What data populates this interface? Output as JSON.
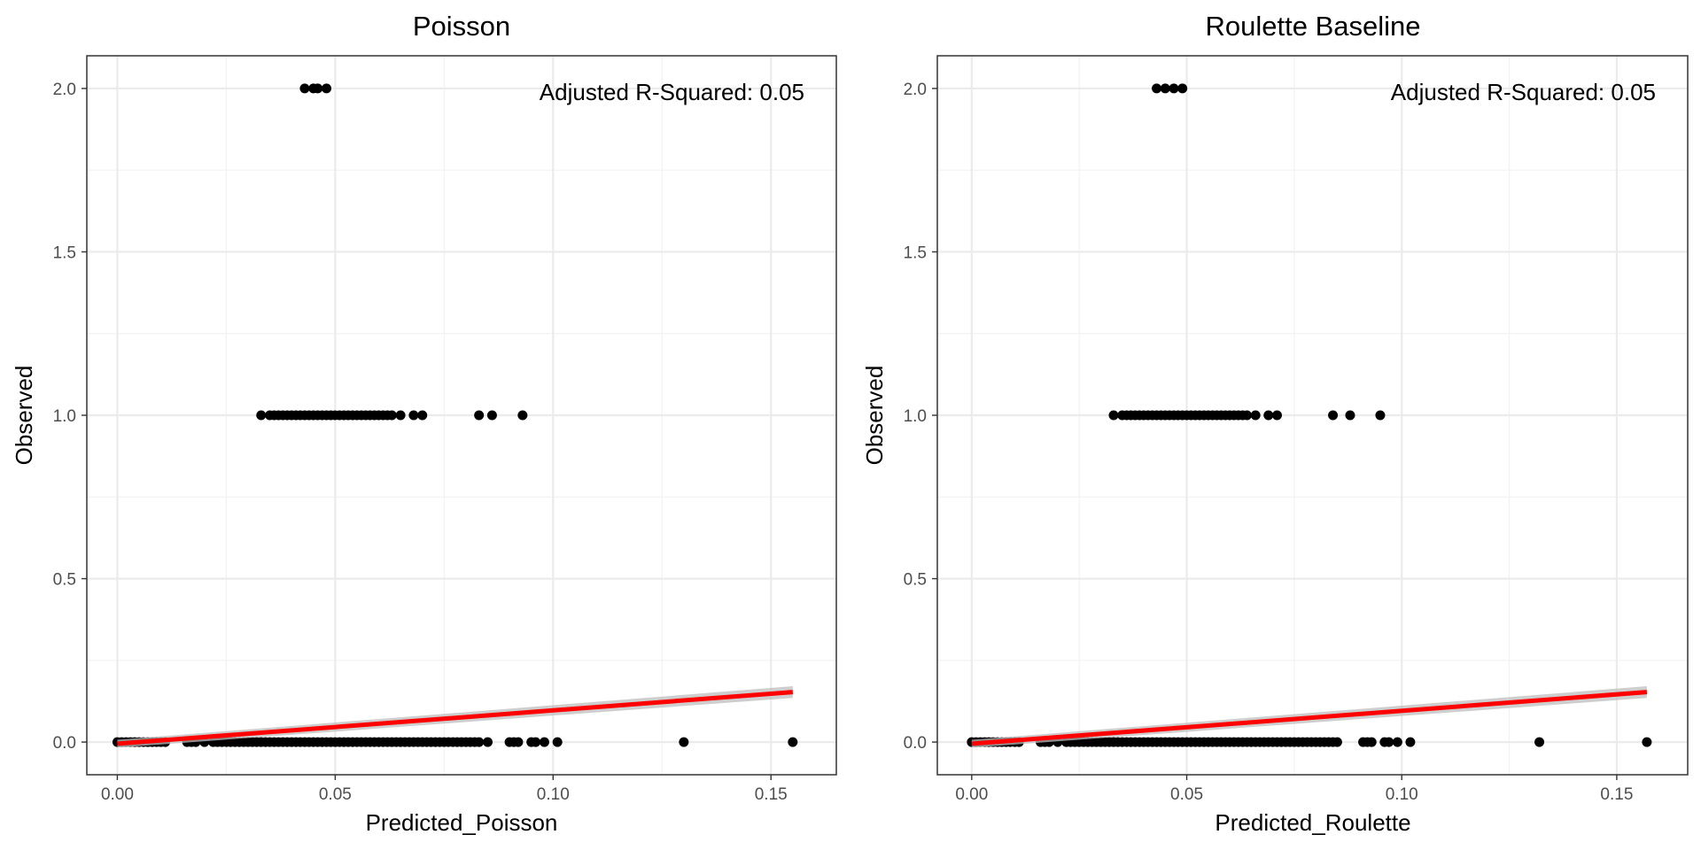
{
  "chart_data": [
    {
      "type": "scatter",
      "title": "Poisson",
      "xlabel": "Predicted_Poisson",
      "ylabel": "Observed",
      "annotation": "Adjusted R-Squared: 0.05",
      "xlim": [
        -0.007,
        0.165
      ],
      "ylim": [
        -0.1,
        2.1
      ],
      "x_ticks": [
        0.0,
        0.05,
        0.1,
        0.15
      ],
      "x_tick_labels": [
        "0.00",
        "0.05",
        "0.10",
        "0.15"
      ],
      "y_ticks": [
        0.0,
        0.5,
        1.0,
        1.5,
        2.0
      ],
      "y_tick_labels": [
        "0.0",
        "0.5",
        "1.0",
        "1.5",
        "2.0"
      ],
      "grid": true,
      "point_color": "#000000",
      "trend_color": "#ff0000",
      "ci_color": "#bdbdbd",
      "trend_line": {
        "x": [
          0.0,
          0.155
        ],
        "y": [
          -0.005,
          0.153
        ],
        "ci_halfwidth": [
          0.012,
          0.018
        ]
      },
      "series": [
        {
          "points": [
            [
              0.043,
              2.0
            ],
            [
              0.045,
              2.0
            ],
            [
              0.046,
              2.0
            ],
            [
              0.048,
              2.0
            ],
            [
              0.033,
              1.0
            ],
            [
              0.035,
              1.0
            ],
            [
              0.036,
              1.0
            ],
            [
              0.037,
              1.0
            ],
            [
              0.038,
              1.0
            ],
            [
              0.039,
              1.0
            ],
            [
              0.04,
              1.0
            ],
            [
              0.041,
              1.0
            ],
            [
              0.042,
              1.0
            ],
            [
              0.043,
              1.0
            ],
            [
              0.044,
              1.0
            ],
            [
              0.045,
              1.0
            ],
            [
              0.046,
              1.0
            ],
            [
              0.047,
              1.0
            ],
            [
              0.048,
              1.0
            ],
            [
              0.049,
              1.0
            ],
            [
              0.05,
              1.0
            ],
            [
              0.051,
              1.0
            ],
            [
              0.052,
              1.0
            ],
            [
              0.053,
              1.0
            ],
            [
              0.054,
              1.0
            ],
            [
              0.055,
              1.0
            ],
            [
              0.056,
              1.0
            ],
            [
              0.057,
              1.0
            ],
            [
              0.058,
              1.0
            ],
            [
              0.059,
              1.0
            ],
            [
              0.06,
              1.0
            ],
            [
              0.061,
              1.0
            ],
            [
              0.062,
              1.0
            ],
            [
              0.063,
              1.0
            ],
            [
              0.065,
              1.0
            ],
            [
              0.068,
              1.0
            ],
            [
              0.07,
              1.0
            ],
            [
              0.083,
              1.0
            ],
            [
              0.086,
              1.0
            ],
            [
              0.093,
              1.0
            ],
            [
              0.0,
              0.0
            ],
            [
              0.001,
              0.0
            ],
            [
              0.002,
              0.0
            ],
            [
              0.003,
              0.0
            ],
            [
              0.004,
              0.0
            ],
            [
              0.005,
              0.0
            ],
            [
              0.006,
              0.0
            ],
            [
              0.007,
              0.0
            ],
            [
              0.008,
              0.0
            ],
            [
              0.009,
              0.0
            ],
            [
              0.01,
              0.0
            ],
            [
              0.011,
              0.0
            ],
            [
              0.016,
              0.0
            ],
            [
              0.017,
              0.0
            ],
            [
              0.018,
              0.0
            ],
            [
              0.02,
              0.0
            ],
            [
              0.022,
              0.0
            ],
            [
              0.023,
              0.0
            ],
            [
              0.024,
              0.0
            ],
            [
              0.025,
              0.0
            ],
            [
              0.026,
              0.0
            ],
            [
              0.027,
              0.0
            ],
            [
              0.028,
              0.0
            ],
            [
              0.029,
              0.0
            ],
            [
              0.03,
              0.0
            ],
            [
              0.031,
              0.0
            ],
            [
              0.032,
              0.0
            ],
            [
              0.033,
              0.0
            ],
            [
              0.034,
              0.0
            ],
            [
              0.035,
              0.0
            ],
            [
              0.036,
              0.0
            ],
            [
              0.037,
              0.0
            ],
            [
              0.038,
              0.0
            ],
            [
              0.039,
              0.0
            ],
            [
              0.04,
              0.0
            ],
            [
              0.041,
              0.0
            ],
            [
              0.042,
              0.0
            ],
            [
              0.043,
              0.0
            ],
            [
              0.044,
              0.0
            ],
            [
              0.045,
              0.0
            ],
            [
              0.046,
              0.0
            ],
            [
              0.047,
              0.0
            ],
            [
              0.048,
              0.0
            ],
            [
              0.049,
              0.0
            ],
            [
              0.05,
              0.0
            ],
            [
              0.051,
              0.0
            ],
            [
              0.052,
              0.0
            ],
            [
              0.053,
              0.0
            ],
            [
              0.054,
              0.0
            ],
            [
              0.055,
              0.0
            ],
            [
              0.056,
              0.0
            ],
            [
              0.057,
              0.0
            ],
            [
              0.058,
              0.0
            ],
            [
              0.059,
              0.0
            ],
            [
              0.06,
              0.0
            ],
            [
              0.061,
              0.0
            ],
            [
              0.062,
              0.0
            ],
            [
              0.063,
              0.0
            ],
            [
              0.064,
              0.0
            ],
            [
              0.065,
              0.0
            ],
            [
              0.066,
              0.0
            ],
            [
              0.067,
              0.0
            ],
            [
              0.068,
              0.0
            ],
            [
              0.069,
              0.0
            ],
            [
              0.07,
              0.0
            ],
            [
              0.071,
              0.0
            ],
            [
              0.072,
              0.0
            ],
            [
              0.073,
              0.0
            ],
            [
              0.074,
              0.0
            ],
            [
              0.075,
              0.0
            ],
            [
              0.076,
              0.0
            ],
            [
              0.077,
              0.0
            ],
            [
              0.078,
              0.0
            ],
            [
              0.079,
              0.0
            ],
            [
              0.08,
              0.0
            ],
            [
              0.081,
              0.0
            ],
            [
              0.082,
              0.0
            ],
            [
              0.083,
              0.0
            ],
            [
              0.085,
              0.0
            ],
            [
              0.09,
              0.0
            ],
            [
              0.091,
              0.0
            ],
            [
              0.092,
              0.0
            ],
            [
              0.095,
              0.0
            ],
            [
              0.096,
              0.0
            ],
            [
              0.098,
              0.0
            ],
            [
              0.101,
              0.0
            ],
            [
              0.13,
              0.0
            ],
            [
              0.155,
              0.0
            ]
          ]
        }
      ]
    },
    {
      "type": "scatter",
      "title": "Roulette Baseline",
      "xlabel": "Predicted_Roulette",
      "ylabel": "Observed",
      "annotation": "Adjusted R-Squared: 0.05",
      "xlim": [
        -0.008,
        0.1665
      ],
      "ylim": [
        -0.1,
        2.1
      ],
      "x_ticks": [
        0.0,
        0.05,
        0.1,
        0.15
      ],
      "x_tick_labels": [
        "0.00",
        "0.05",
        "0.10",
        "0.15"
      ],
      "y_ticks": [
        0.0,
        0.5,
        1.0,
        1.5,
        2.0
      ],
      "y_tick_labels": [
        "0.0",
        "0.5",
        "1.0",
        "1.5",
        "2.0"
      ],
      "grid": true,
      "point_color": "#000000",
      "trend_color": "#ff0000",
      "ci_color": "#bdbdbd",
      "trend_line": {
        "x": [
          0.0,
          0.157
        ],
        "y": [
          -0.005,
          0.153
        ],
        "ci_halfwidth": [
          0.012,
          0.018
        ]
      },
      "series": [
        {
          "points": [
            [
              0.043,
              2.0
            ],
            [
              0.045,
              2.0
            ],
            [
              0.047,
              2.0
            ],
            [
              0.049,
              2.0
            ],
            [
              0.033,
              1.0
            ],
            [
              0.035,
              1.0
            ],
            [
              0.036,
              1.0
            ],
            [
              0.037,
              1.0
            ],
            [
              0.038,
              1.0
            ],
            [
              0.039,
              1.0
            ],
            [
              0.04,
              1.0
            ],
            [
              0.041,
              1.0
            ],
            [
              0.042,
              1.0
            ],
            [
              0.043,
              1.0
            ],
            [
              0.044,
              1.0
            ],
            [
              0.045,
              1.0
            ],
            [
              0.046,
              1.0
            ],
            [
              0.047,
              1.0
            ],
            [
              0.048,
              1.0
            ],
            [
              0.049,
              1.0
            ],
            [
              0.05,
              1.0
            ],
            [
              0.051,
              1.0
            ],
            [
              0.052,
              1.0
            ],
            [
              0.053,
              1.0
            ],
            [
              0.054,
              1.0
            ],
            [
              0.055,
              1.0
            ],
            [
              0.056,
              1.0
            ],
            [
              0.057,
              1.0
            ],
            [
              0.058,
              1.0
            ],
            [
              0.059,
              1.0
            ],
            [
              0.06,
              1.0
            ],
            [
              0.061,
              1.0
            ],
            [
              0.062,
              1.0
            ],
            [
              0.063,
              1.0
            ],
            [
              0.064,
              1.0
            ],
            [
              0.066,
              1.0
            ],
            [
              0.069,
              1.0
            ],
            [
              0.071,
              1.0
            ],
            [
              0.084,
              1.0
            ],
            [
              0.088,
              1.0
            ],
            [
              0.095,
              1.0
            ],
            [
              0.0,
              0.0
            ],
            [
              0.001,
              0.0
            ],
            [
              0.002,
              0.0
            ],
            [
              0.003,
              0.0
            ],
            [
              0.004,
              0.0
            ],
            [
              0.005,
              0.0
            ],
            [
              0.006,
              0.0
            ],
            [
              0.007,
              0.0
            ],
            [
              0.008,
              0.0
            ],
            [
              0.009,
              0.0
            ],
            [
              0.01,
              0.0
            ],
            [
              0.011,
              0.0
            ],
            [
              0.016,
              0.0
            ],
            [
              0.017,
              0.0
            ],
            [
              0.018,
              0.0
            ],
            [
              0.02,
              0.0
            ],
            [
              0.022,
              0.0
            ],
            [
              0.023,
              0.0
            ],
            [
              0.024,
              0.0
            ],
            [
              0.025,
              0.0
            ],
            [
              0.026,
              0.0
            ],
            [
              0.027,
              0.0
            ],
            [
              0.028,
              0.0
            ],
            [
              0.029,
              0.0
            ],
            [
              0.03,
              0.0
            ],
            [
              0.031,
              0.0
            ],
            [
              0.032,
              0.0
            ],
            [
              0.033,
              0.0
            ],
            [
              0.034,
              0.0
            ],
            [
              0.035,
              0.0
            ],
            [
              0.036,
              0.0
            ],
            [
              0.037,
              0.0
            ],
            [
              0.038,
              0.0
            ],
            [
              0.039,
              0.0
            ],
            [
              0.04,
              0.0
            ],
            [
              0.041,
              0.0
            ],
            [
              0.042,
              0.0
            ],
            [
              0.043,
              0.0
            ],
            [
              0.044,
              0.0
            ],
            [
              0.045,
              0.0
            ],
            [
              0.046,
              0.0
            ],
            [
              0.047,
              0.0
            ],
            [
              0.048,
              0.0
            ],
            [
              0.049,
              0.0
            ],
            [
              0.05,
              0.0
            ],
            [
              0.051,
              0.0
            ],
            [
              0.052,
              0.0
            ],
            [
              0.053,
              0.0
            ],
            [
              0.054,
              0.0
            ],
            [
              0.055,
              0.0
            ],
            [
              0.056,
              0.0
            ],
            [
              0.057,
              0.0
            ],
            [
              0.058,
              0.0
            ],
            [
              0.059,
              0.0
            ],
            [
              0.06,
              0.0
            ],
            [
              0.061,
              0.0
            ],
            [
              0.062,
              0.0
            ],
            [
              0.063,
              0.0
            ],
            [
              0.064,
              0.0
            ],
            [
              0.065,
              0.0
            ],
            [
              0.066,
              0.0
            ],
            [
              0.067,
              0.0
            ],
            [
              0.068,
              0.0
            ],
            [
              0.069,
              0.0
            ],
            [
              0.07,
              0.0
            ],
            [
              0.071,
              0.0
            ],
            [
              0.072,
              0.0
            ],
            [
              0.073,
              0.0
            ],
            [
              0.074,
              0.0
            ],
            [
              0.075,
              0.0
            ],
            [
              0.076,
              0.0
            ],
            [
              0.077,
              0.0
            ],
            [
              0.078,
              0.0
            ],
            [
              0.079,
              0.0
            ],
            [
              0.08,
              0.0
            ],
            [
              0.081,
              0.0
            ],
            [
              0.082,
              0.0
            ],
            [
              0.083,
              0.0
            ],
            [
              0.084,
              0.0
            ],
            [
              0.085,
              0.0
            ],
            [
              0.091,
              0.0
            ],
            [
              0.092,
              0.0
            ],
            [
              0.093,
              0.0
            ],
            [
              0.096,
              0.0
            ],
            [
              0.097,
              0.0
            ],
            [
              0.099,
              0.0
            ],
            [
              0.102,
              0.0
            ],
            [
              0.132,
              0.0
            ],
            [
              0.157,
              0.0
            ]
          ]
        }
      ]
    }
  ]
}
